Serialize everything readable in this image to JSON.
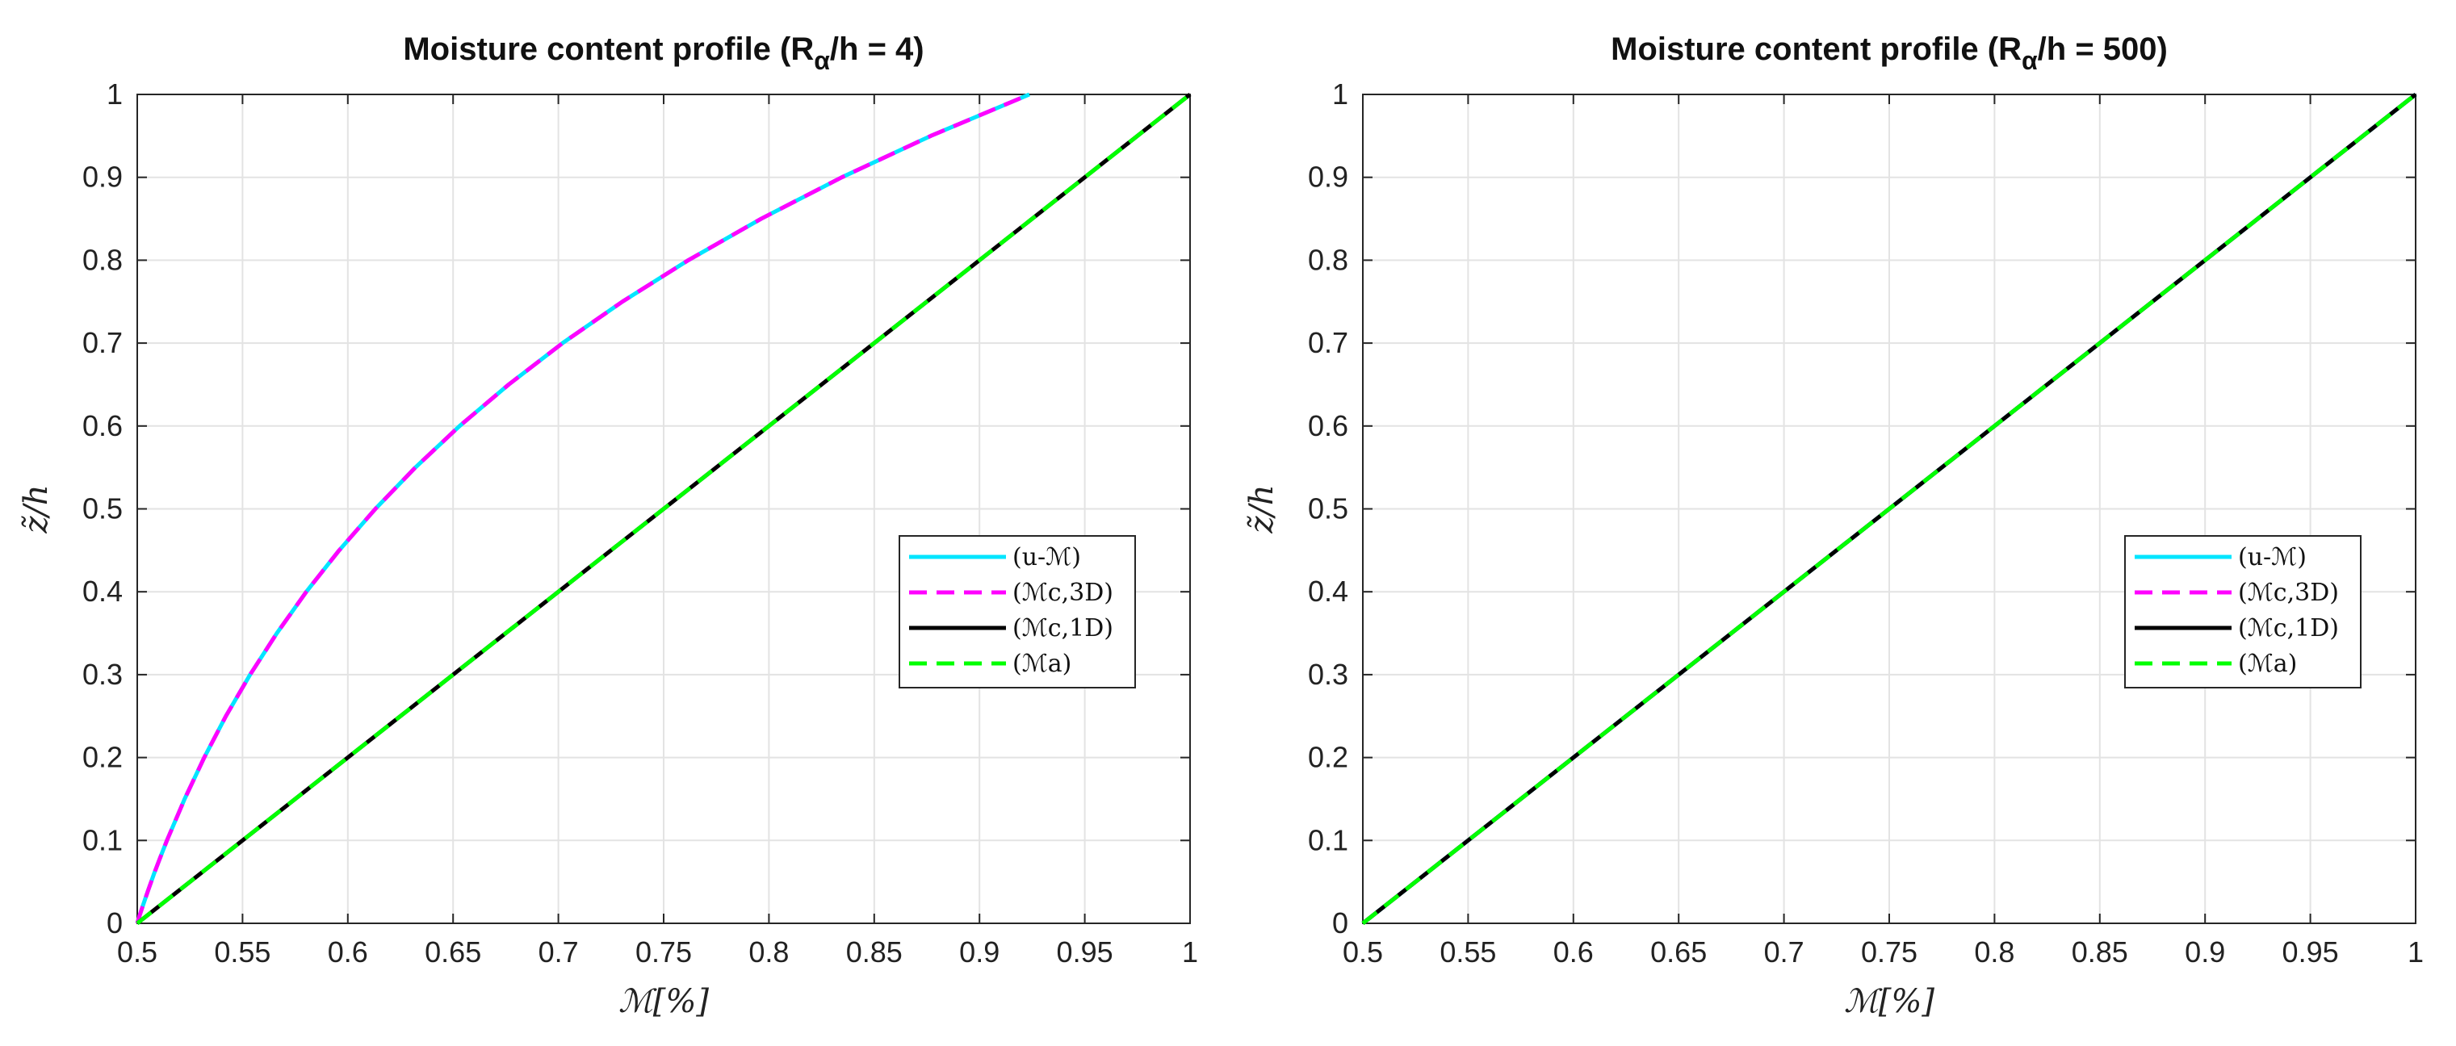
{
  "chart_data": [
    {
      "type": "line",
      "title": "Moisture content profile (Rα/h = 4)",
      "title_parts": {
        "prefix": "Moisture content profile (R",
        "sub": "α",
        "suffix": "/h = 4)"
      },
      "xlabel": "ℳ[%]",
      "ylabel": "z̃/h",
      "xlim": [
        0.5,
        1
      ],
      "ylim": [
        0,
        1
      ],
      "xticks": [
        "0.5",
        "0.55",
        "0.6",
        "0.65",
        "0.7",
        "0.75",
        "0.8",
        "0.85",
        "0.9",
        "0.95",
        "1"
      ],
      "yticks": [
        "0",
        "0.1",
        "0.2",
        "0.3",
        "0.4",
        "0.5",
        "0.6",
        "0.7",
        "0.8",
        "0.9",
        "1"
      ],
      "grid": true,
      "legend_position": "right-middle",
      "series": [
        {
          "name": "(u-ℳ)",
          "color": "#00e5ff",
          "dash": "solid",
          "y": [
            0,
            0.01,
            0.02,
            0.04,
            0.06,
            0.08,
            0.1,
            0.15,
            0.2,
            0.25,
            0.3,
            0.35,
            0.4,
            0.45,
            0.5,
            0.55,
            0.6,
            0.65,
            0.7,
            0.75,
            0.8,
            0.85,
            0.9,
            0.95,
            1.0
          ],
          "x": [
            0.5,
            0.5012,
            0.5025,
            0.5052,
            0.508,
            0.511,
            0.5141,
            0.5225,
            0.5318,
            0.5421,
            0.5536,
            0.5663,
            0.5803,
            0.5959,
            0.6131,
            0.6321,
            0.6531,
            0.6764,
            0.702,
            0.7304,
            0.7617,
            0.7963,
            0.8346,
            0.8769,
            0.9237
          ]
        },
        {
          "name": "(ℳc,3D)",
          "color": "#ff00ff",
          "dash": "dashed",
          "y": [
            0,
            0.01,
            0.02,
            0.04,
            0.06,
            0.08,
            0.1,
            0.15,
            0.2,
            0.25,
            0.3,
            0.35,
            0.4,
            0.45,
            0.5,
            0.55,
            0.6,
            0.65,
            0.7,
            0.75,
            0.8,
            0.85,
            0.9,
            0.95,
            1.0
          ],
          "x": [
            0.5,
            0.5012,
            0.5025,
            0.5052,
            0.508,
            0.511,
            0.5141,
            0.5225,
            0.5318,
            0.5421,
            0.5536,
            0.5663,
            0.5803,
            0.5959,
            0.6131,
            0.6321,
            0.6531,
            0.6764,
            0.702,
            0.7304,
            0.7617,
            0.7963,
            0.8346,
            0.8769,
            0.9237
          ]
        },
        {
          "name": "(ℳc,1D)",
          "color": "#000000",
          "dash": "solid",
          "x": [
            0.5,
            1.0
          ],
          "y": [
            0,
            1.0
          ]
        },
        {
          "name": "(ℳa)",
          "color": "#00ff00",
          "dash": "dashed",
          "x": [
            0.5,
            1.0
          ],
          "y": [
            0,
            1.0
          ]
        }
      ]
    },
    {
      "type": "line",
      "title": "Moisture content profile (Rα/h = 500)",
      "title_parts": {
        "prefix": "Moisture content profile (R",
        "sub": "α",
        "suffix": "/h = 500)"
      },
      "xlabel": "ℳ[%]",
      "ylabel": "z̃/h",
      "xlim": [
        0.5,
        1
      ],
      "ylim": [
        0,
        1
      ],
      "xticks": [
        "0.5",
        "0.55",
        "0.6",
        "0.65",
        "0.7",
        "0.75",
        "0.8",
        "0.85",
        "0.9",
        "0.95",
        "1"
      ],
      "yticks": [
        "0",
        "0.1",
        "0.2",
        "0.3",
        "0.4",
        "0.5",
        "0.6",
        "0.7",
        "0.8",
        "0.9",
        "1"
      ],
      "grid": true,
      "legend_position": "right-middle",
      "series": [
        {
          "name": "(u-ℳ)",
          "color": "#00e5ff",
          "dash": "solid",
          "x": [
            0.5,
            1.0
          ],
          "y": [
            0,
            1.0
          ]
        },
        {
          "name": "(ℳc,3D)",
          "color": "#ff00ff",
          "dash": "dashed",
          "x": [
            0.5,
            1.0
          ],
          "y": [
            0,
            1.0
          ]
        },
        {
          "name": "(ℳc,1D)",
          "color": "#000000",
          "dash": "solid",
          "x": [
            0.5,
            1.0
          ],
          "y": [
            0,
            1.0
          ]
        },
        {
          "name": "(ℳa)",
          "color": "#00ff00",
          "dash": "dashed",
          "x": [
            0.5,
            1.0
          ],
          "y": [
            0,
            1.0
          ]
        }
      ]
    }
  ]
}
